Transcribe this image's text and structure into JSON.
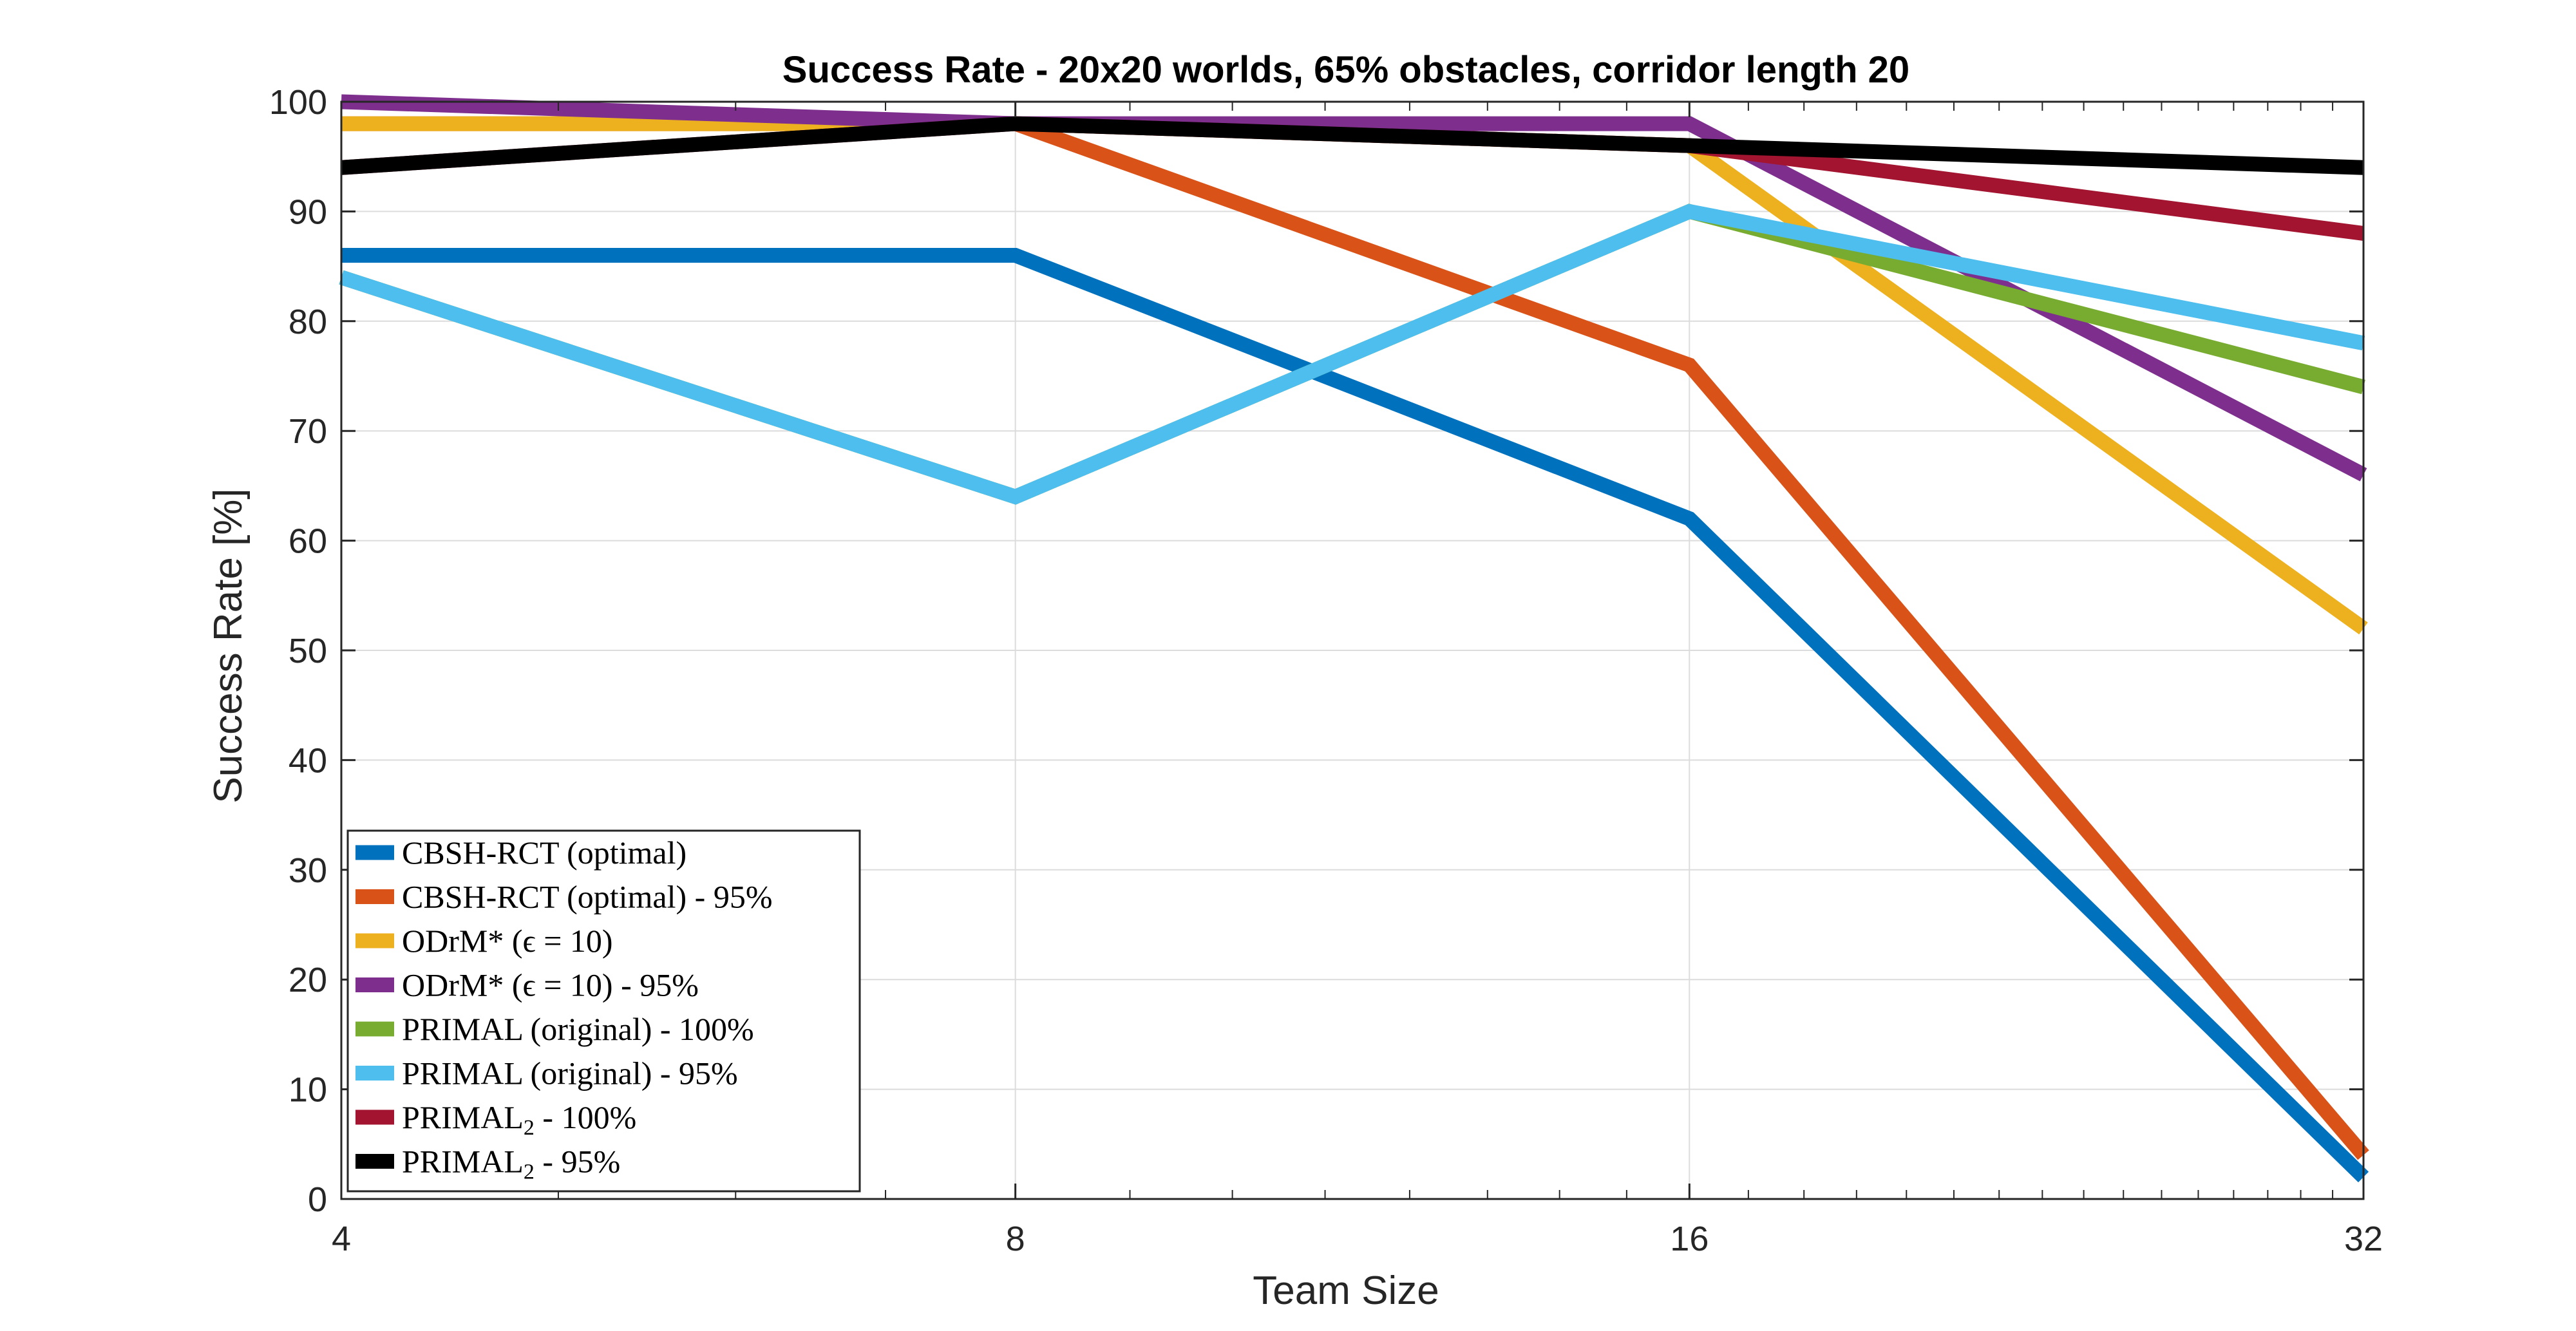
{
  "chart_data": {
    "type": "line",
    "title": "Success Rate - 20x20 worlds, 65% obstacles, corridor length 20",
    "xlabel": "Team Size",
    "ylabel": "Success Rate [%]",
    "x_scale": "log2",
    "x": [
      4,
      8,
      16,
      32
    ],
    "xticks": [
      "4",
      "8",
      "16",
      "32"
    ],
    "ylim": [
      0,
      100
    ],
    "yticks": [
      "0",
      "10",
      "20",
      "30",
      "40",
      "50",
      "60",
      "70",
      "80",
      "90",
      "100"
    ],
    "grid": true,
    "legend_position": "bottom-left",
    "series": [
      {
        "name": "CBSH-RCT (optimal)",
        "color": "#0072BD",
        "values": [
          86,
          86,
          62,
          2
        ]
      },
      {
        "name": "CBSH-RCT (optimal) - 95%",
        "color": "#D95319",
        "values": [
          98,
          98,
          76,
          4
        ]
      },
      {
        "name": "ODrM* (ϵ = 10)",
        "color": "#EDB120",
        "values": [
          98,
          98,
          96,
          52
        ]
      },
      {
        "name": "ODrM* (ϵ = 10) - 95%",
        "color": "#7E2F8E",
        "values": [
          100,
          98,
          98,
          66
        ]
      },
      {
        "name": "PRIMAL (original) - 100%",
        "color": "#77AC30",
        "values": [
          84,
          64,
          90,
          74
        ]
      },
      {
        "name": "PRIMAL (original) - 95%",
        "color": "#4DBEEE",
        "values": [
          84,
          64,
          90,
          78
        ]
      },
      {
        "name": "PRIMAL2 - 100%",
        "color": "#A2142F",
        "values": [
          94,
          98,
          96,
          88
        ]
      },
      {
        "name": "PRIMAL2 - 95%",
        "color": "#000000",
        "values": [
          94,
          98,
          96,
          94
        ]
      }
    ]
  }
}
